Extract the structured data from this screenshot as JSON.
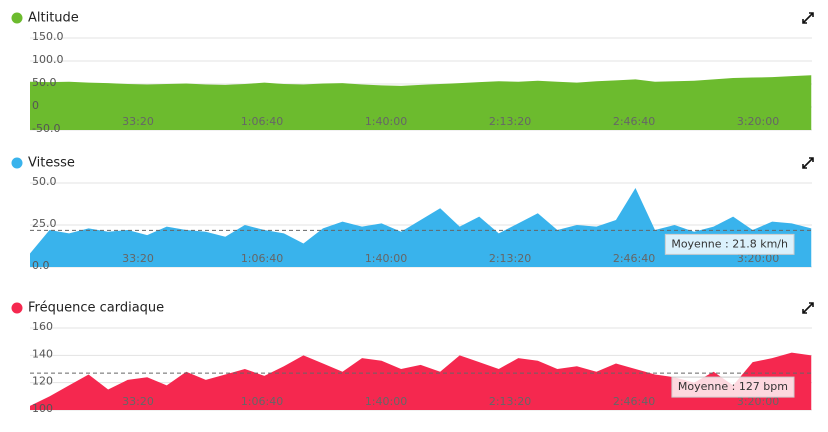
{
  "chart_data": [
    {
      "type": "area",
      "x": [
        258,
        573,
        888,
        1203,
        1518,
        1833,
        2148,
        2463,
        2778,
        3093,
        3408,
        3723,
        4038,
        4353,
        4668,
        4983,
        5298,
        5613,
        5928,
        6243,
        6558,
        6873,
        7188,
        7503,
        7818,
        8133,
        8448,
        8763,
        9078,
        9393,
        9708,
        10023,
        10338,
        10653,
        10968,
        11283,
        11598,
        11913,
        12228,
        12543,
        12858
      ],
      "series": [
        {
          "name": "Altitude",
          "color": "#6cbb2e",
          "values": [
            55,
            54,
            55,
            53,
            52,
            50,
            49,
            50,
            51,
            49,
            48,
            50,
            53,
            50,
            49,
            51,
            52,
            49,
            47,
            46,
            48,
            50,
            52,
            54,
            56,
            55,
            57,
            55,
            53,
            56,
            58,
            60,
            55,
            56,
            57,
            60,
            63,
            64,
            65,
            67,
            69
          ]
        }
      ],
      "xlim": [
        258,
        12870
      ],
      "xticks": [
        {
          "value": 2000,
          "label": "33:20"
        },
        {
          "value": 4000,
          "label": "1:06:40"
        },
        {
          "value": 6000,
          "label": "1:40:00"
        },
        {
          "value": 8000,
          "label": "2:13:20"
        },
        {
          "value": 10000,
          "label": "2:46:40"
        },
        {
          "value": 12000,
          "label": "3:20:00"
        }
      ],
      "ylim": [
        -50,
        150
      ],
      "yticks": [
        {
          "value": 150,
          "label": "150.0"
        },
        {
          "value": 100,
          "label": "100.0"
        },
        {
          "value": 50,
          "label": "50.0"
        },
        0,
        {
          "value": -50,
          "label": "-50.0"
        }
      ],
      "grid": true
    },
    {
      "type": "area",
      "x": [
        258,
        573,
        888,
        1203,
        1518,
        1833,
        2148,
        2463,
        2778,
        3093,
        3408,
        3723,
        4038,
        4353,
        4668,
        4983,
        5298,
        5613,
        5928,
        6243,
        6558,
        6873,
        7188,
        7503,
        7818,
        8133,
        8448,
        8763,
        9078,
        9393,
        9708,
        10023,
        10338,
        10653,
        10968,
        11283,
        11598,
        11913,
        12228,
        12543,
        12858
      ],
      "series": [
        {
          "name": "Vitesse",
          "color": "#39b3ec",
          "values": [
            8,
            22,
            20,
            23,
            21,
            22,
            19,
            24,
            22,
            21,
            18,
            25,
            22,
            20,
            14,
            23,
            27,
            24,
            26,
            21,
            28,
            35,
            24,
            30,
            20,
            26,
            32,
            22,
            25,
            24,
            28,
            47,
            22,
            25,
            21,
            24,
            30,
            22,
            27,
            26,
            23
          ]
        }
      ],
      "xlim": [
        258,
        12870
      ],
      "xticks": [
        {
          "value": 2000,
          "label": "33:20"
        },
        {
          "value": 4000,
          "label": "1:06:40"
        },
        {
          "value": 6000,
          "label": "1:40:00"
        },
        {
          "value": 8000,
          "label": "2:13:20"
        },
        {
          "value": 10000,
          "label": "2:46:40"
        },
        {
          "value": 12000,
          "label": "3:20:00"
        }
      ],
      "ylim": [
        0,
        50
      ],
      "yticks": [
        {
          "value": 50,
          "label": "50.0"
        },
        {
          "value": 25,
          "label": "25.0"
        },
        {
          "value": 0,
          "label": "0.0"
        }
      ],
      "grid": true,
      "mean": 21.8,
      "mean_label": "Moyenne : 21.8 km/h"
    },
    {
      "type": "area",
      "x": [
        258,
        573,
        888,
        1203,
        1518,
        1833,
        2148,
        2463,
        2778,
        3093,
        3408,
        3723,
        4038,
        4353,
        4668,
        4983,
        5298,
        5613,
        5928,
        6243,
        6558,
        6873,
        7188,
        7503,
        7818,
        8133,
        8448,
        8763,
        9078,
        9393,
        9708,
        10023,
        10338,
        10653,
        10968,
        11283,
        11598,
        11913,
        12228,
        12543,
        12858
      ],
      "series": [
        {
          "name": "Fréquence cardiaque",
          "color": "#f5284f",
          "values": [
            103,
            110,
            118,
            126,
            115,
            122,
            124,
            118,
            128,
            122,
            126,
            130,
            125,
            132,
            140,
            134,
            128,
            138,
            136,
            130,
            133,
            128,
            140,
            135,
            130,
            138,
            136,
            130,
            132,
            128,
            134,
            130,
            126,
            124,
            120,
            128,
            118,
            135,
            138,
            142,
            140
          ]
        }
      ],
      "xlim": [
        258,
        12870
      ],
      "xticks": [
        {
          "value": 2000,
          "label": "33:20"
        },
        {
          "value": 4000,
          "label": "1:06:40"
        },
        {
          "value": 6000,
          "label": "1:40:00"
        },
        {
          "value": 8000,
          "label": "2:13:20"
        },
        {
          "value": 10000,
          "label": "2:46:40"
        },
        {
          "value": 12000,
          "label": "3:20:00"
        }
      ],
      "ylim": [
        100,
        160
      ],
      "yticks": [
        160,
        140,
        120,
        100
      ],
      "grid": true,
      "mean": 127,
      "mean_label": "Moyenne : 127 bpm"
    }
  ]
}
